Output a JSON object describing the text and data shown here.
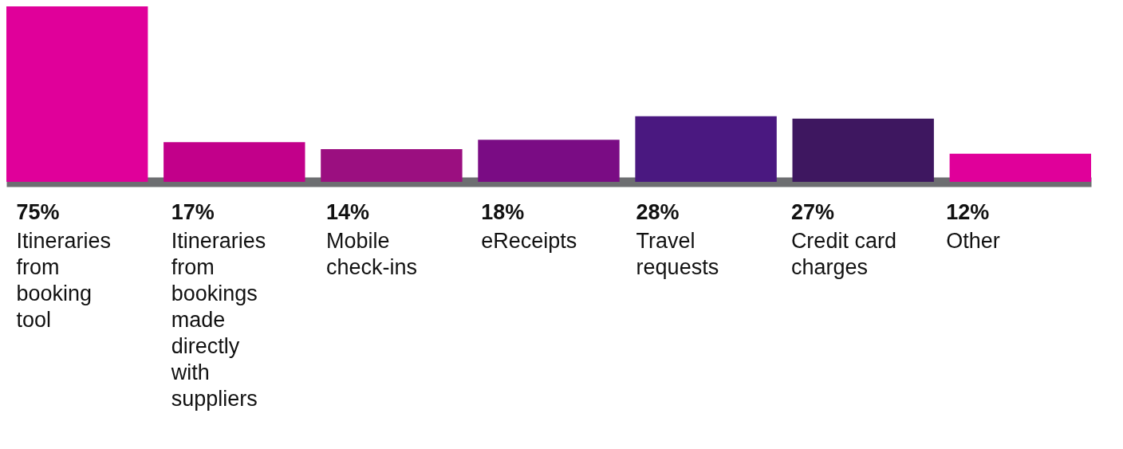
{
  "chart_data": {
    "type": "bar",
    "categories": [
      "Itineraries from booking tool",
      "Itineraries from bookings made directly with suppliers",
      "Mobile check-ins",
      "eReceipts",
      "Travel requests",
      "Credit card charges",
      "Other"
    ],
    "values": [
      75,
      17,
      14,
      18,
      28,
      27,
      12
    ],
    "colors": [
      "#e0009a",
      "#c2008a",
      "#9b0f80",
      "#7a0c84",
      "#4a1880",
      "#3e1760",
      "#e0009a"
    ],
    "value_labels": [
      "75%",
      "17%",
      "14%",
      "18%",
      "28%",
      "27%",
      "12%"
    ],
    "grid": false
  }
}
